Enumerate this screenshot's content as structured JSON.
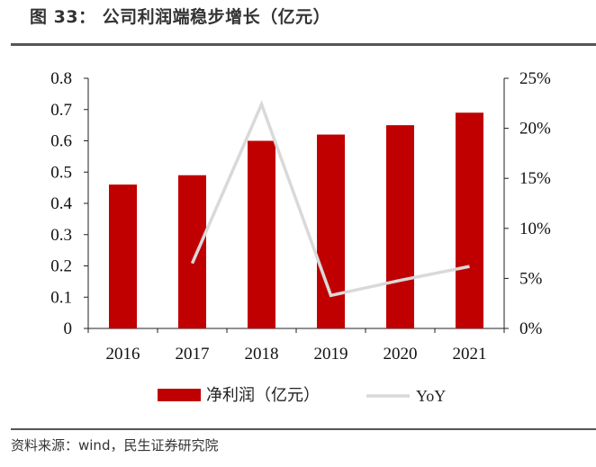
{
  "title": "图 33： 公司利润端稳步增长（亿元）",
  "source": "资料来源：wind，民生证券研究院",
  "chart_data": {
    "type": "bar+line",
    "categories": [
      "2016",
      "2017",
      "2018",
      "2019",
      "2020",
      "2021"
    ],
    "series": [
      {
        "name": "净利润（亿元）",
        "type": "bar",
        "axis": "left",
        "color": "#c00000",
        "values": [
          0.46,
          0.49,
          0.6,
          0.62,
          0.65,
          0.69
        ]
      },
      {
        "name": "YoY",
        "type": "line",
        "axis": "right",
        "color": "#d9d9d9",
        "values": [
          null,
          6.5,
          22.4,
          3.3,
          4.8,
          6.2
        ]
      }
    ],
    "y_left": {
      "min": 0,
      "max": 0.8,
      "ticks": [
        "0",
        "0.1",
        "0.2",
        "0.3",
        "0.4",
        "0.5",
        "0.6",
        "0.7",
        "0.8"
      ]
    },
    "y_right": {
      "min": 0,
      "max": 25,
      "ticks": [
        "0%",
        "5%",
        "10%",
        "15%",
        "20%",
        "25%"
      ]
    },
    "legend_position": "bottom",
    "grid": false
  }
}
